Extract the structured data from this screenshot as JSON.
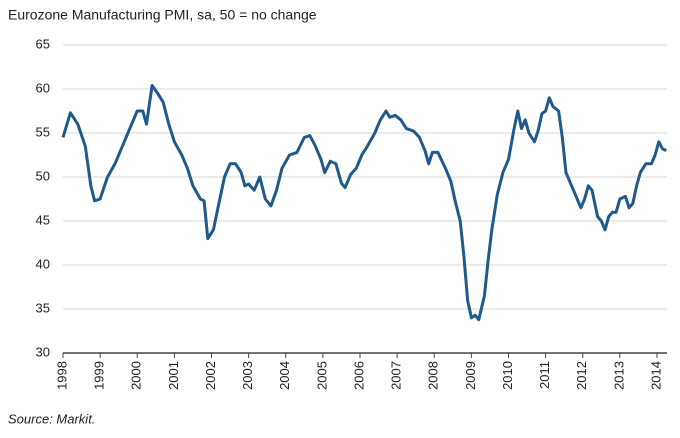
{
  "chart_data": {
    "type": "line",
    "title": "Eurozone Manufacturing PMI, sa, 50 = no change",
    "source": "Source: Markit.",
    "color": "#1f5a8a",
    "grid": true,
    "x": [
      1998.0,
      1998.2,
      1998.4,
      1998.6,
      1998.75,
      1998.85,
      1999.0,
      1999.2,
      1999.4,
      1999.6,
      1999.8,
      2000.0,
      2000.15,
      2000.25,
      2000.4,
      2000.55,
      2000.7,
      2000.85,
      2001.0,
      2001.2,
      2001.35,
      2001.5,
      2001.7,
      2001.8,
      2001.9,
      2002.05,
      2002.2,
      2002.35,
      2002.5,
      2002.65,
      2002.8,
      2002.9,
      2003.0,
      2003.15,
      2003.3,
      2003.45,
      2003.6,
      2003.75,
      2003.9,
      2004.1,
      2004.3,
      2004.5,
      2004.65,
      2004.8,
      2004.95,
      2005.05,
      2005.2,
      2005.35,
      2005.5,
      2005.6,
      2005.75,
      2005.9,
      2006.05,
      2006.2,
      2006.4,
      2006.55,
      2006.7,
      2006.8,
      2006.95,
      2007.1,
      2007.25,
      2007.45,
      2007.6,
      2007.75,
      2007.85,
      2007.95,
      2008.1,
      2008.3,
      2008.45,
      2008.55,
      2008.7,
      2008.8,
      2008.9,
      2009.0,
      2009.1,
      2009.2,
      2009.35,
      2009.45,
      2009.55,
      2009.7,
      2009.85,
      2010.0,
      2010.15,
      2010.25,
      2010.35,
      2010.45,
      2010.55,
      2010.7,
      2010.8,
      2010.9,
      2011.0,
      2011.1,
      2011.2,
      2011.35,
      2011.45,
      2011.55,
      2011.7,
      2011.8,
      2011.95,
      2012.05,
      2012.15,
      2012.25,
      2012.4,
      2012.5,
      2012.6,
      2012.7,
      2012.8,
      2012.9,
      2013.0,
      2013.15,
      2013.25,
      2013.35,
      2013.45,
      2013.55,
      2013.7,
      2013.85,
      2013.95,
      2014.05,
      2014.15,
      2014.25
    ],
    "values": [
      54.5,
      57.3,
      56,
      53.5,
      49,
      47.3,
      47.5,
      50,
      51.5,
      53.5,
      55.5,
      57.5,
      57.5,
      56,
      60.4,
      59.5,
      58.5,
      56,
      54,
      52.5,
      51,
      49,
      47.5,
      47.3,
      43,
      44,
      47,
      50,
      51.5,
      51.5,
      50.5,
      49,
      49.2,
      48.5,
      50,
      47.5,
      46.7,
      48.5,
      51,
      52.5,
      52.8,
      54.5,
      54.7,
      53.5,
      52,
      50.5,
      51.8,
      51.5,
      49.3,
      48.8,
      50.3,
      51,
      52.5,
      53.5,
      55,
      56.5,
      57.5,
      56.8,
      57,
      56.5,
      55.5,
      55.2,
      54.5,
      53,
      51.5,
      52.8,
      52.8,
      51,
      49.5,
      47.5,
      45,
      41,
      36,
      34,
      34.3,
      33.8,
      36.5,
      40.5,
      44,
      48,
      50.5,
      52,
      55.5,
      57.5,
      55.5,
      56.5,
      55,
      54,
      55.3,
      57.2,
      57.5,
      59,
      58,
      57.5,
      54.5,
      50.5,
      49,
      48,
      46.5,
      47.5,
      49,
      48.5,
      45.5,
      45,
      44,
      45.5,
      46,
      46,
      47.5,
      47.8,
      46.5,
      47,
      49,
      50.5,
      51.5,
      51.5,
      52.5,
      54,
      53.2,
      53
    ],
    "xlim": [
      1998,
      2014.27
    ],
    "xticks": [
      1998,
      1999,
      2000,
      2001,
      2002,
      2003,
      2004,
      2005,
      2006,
      2007,
      2008,
      2009,
      2010,
      2011,
      2012,
      2013,
      2014
    ],
    "ylim": [
      30,
      65
    ],
    "yticks": [
      30,
      35,
      40,
      45,
      50,
      55,
      60,
      65
    ]
  }
}
